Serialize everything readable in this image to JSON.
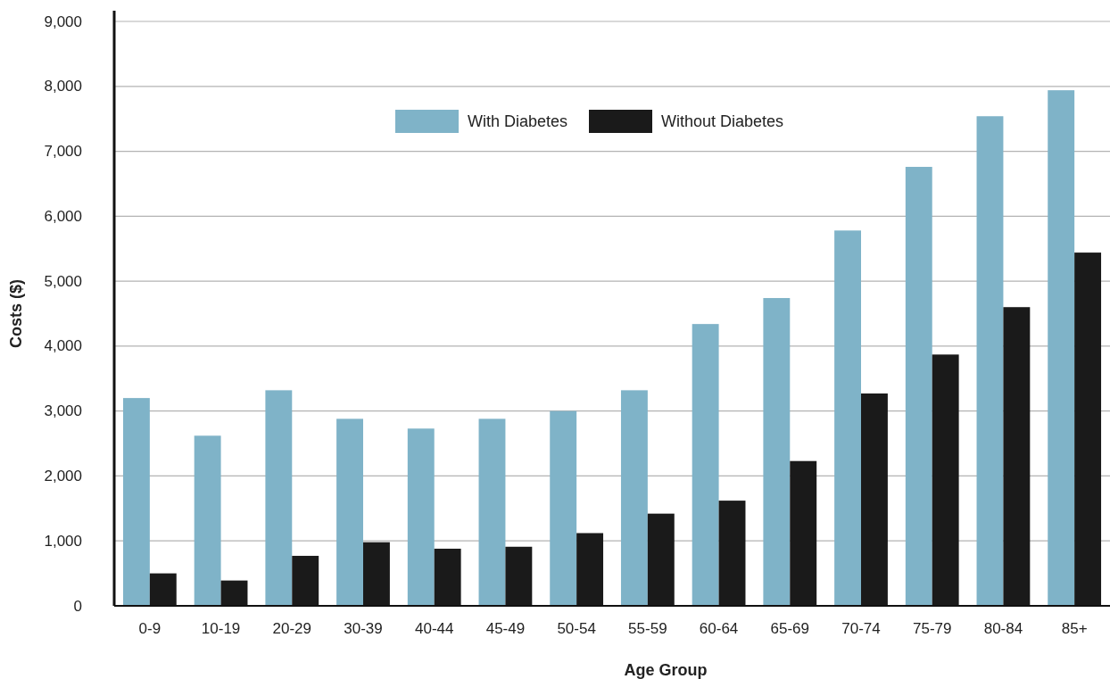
{
  "chart_data": {
    "type": "bar",
    "xlabel": "Age Group",
    "ylabel": "Costs ($)",
    "categories": [
      "0-9",
      "10-19",
      "20-29",
      "30-39",
      "40-44",
      "45-49",
      "50-54",
      "55-59",
      "60-64",
      "65-69",
      "70-74",
      "75-79",
      "80-84",
      "85+"
    ],
    "series": [
      {
        "name": "With Diabetes",
        "color": "#7fb3c8",
        "values": [
          3200,
          2620,
          3320,
          2880,
          2730,
          2880,
          3000,
          3320,
          4340,
          4740,
          5780,
          6760,
          7540,
          7940
        ]
      },
      {
        "name": "Without Diabetes",
        "color": "#1a1a1a",
        "values": [
          500,
          390,
          770,
          980,
          880,
          910,
          1120,
          1420,
          1620,
          2230,
          3270,
          3870,
          4600,
          5440
        ]
      }
    ],
    "ylim": [
      0,
      9000
    ],
    "yticks": [
      {
        "value": 0,
        "label": "0"
      },
      {
        "value": 1000,
        "label": "1,000"
      },
      {
        "value": 2000,
        "label": "2,000"
      },
      {
        "value": 3000,
        "label": "3,000"
      },
      {
        "value": 4000,
        "label": "4,000"
      },
      {
        "value": 5000,
        "label": "5,000"
      },
      {
        "value": 6000,
        "label": "6,000"
      },
      {
        "value": 7000,
        "label": "7,000"
      },
      {
        "value": 8000,
        "label": "8,000"
      },
      {
        "value": 9000,
        "label": "9,000"
      }
    ],
    "grid": "y",
    "legend": "top"
  }
}
